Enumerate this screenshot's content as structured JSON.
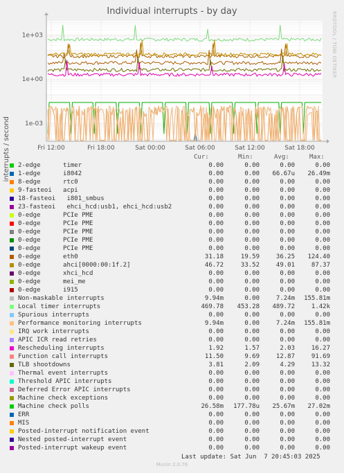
{
  "title": "Individual interrupts - by day",
  "side_label": "RRDTOOL / TOBI OETIKER",
  "footer": "Munin 2.0.76",
  "last_update": "Last update: Sat Jun  7 20:45:03 2025",
  "columns": [
    "Cur:",
    "Min:",
    "Avg:",
    "Max:"
  ],
  "chart_data": {
    "type": "line",
    "title": "Individual interrupts - by day",
    "ylabel": "interrupts / second",
    "yscale": "log",
    "ylim": [
      6e-05,
      9
    ],
    "yticks": [
      {
        "value": 1000,
        "label": "1e+03"
      },
      {
        "value": 1,
        "label": "1e+00"
      },
      {
        "value": 0.001,
        "label": "1e-03"
      }
    ],
    "xticks": [
      "Fri 12:00",
      "Fri 18:00",
      "Sat 00:00",
      "Sat 06:00",
      "Sat 12:00",
      "Sat 18:00"
    ],
    "grid": true,
    "series": [
      {
        "name": "Local timer interrupts",
        "level": 489.72,
        "color": "#7FD97F"
      },
      {
        "name": "Function call interrupts",
        "level": 12.87,
        "color": "#A85A00"
      },
      {
        "name": "TLB shootdowns",
        "level": 4.29,
        "color": "#6F6F00"
      },
      {
        "name": "Rescheduling interrupts",
        "level": 2.03,
        "color": "#E000B0"
      },
      {
        "name": "eth0",
        "level": 36.25,
        "color": "#A86400"
      },
      {
        "name": "ahci[0000:00:1f.2]",
        "level": 49.01,
        "color": "#C89000"
      },
      {
        "name": "Machine check polls",
        "level": 0.02567,
        "color": "#00B000"
      },
      {
        "name": "1-edge i8042",
        "level": 6.67e-05,
        "color": "#0066B3"
      },
      {
        "name": "Non-maskable interrupts",
        "level": 0.00724,
        "color": "#F0C090"
      },
      {
        "name": "Performance monitoring interrupts",
        "level": 0.00724,
        "color": "#F0B070"
      }
    ]
  },
  "legend": [
    {
      "label": "2-edge      timer",
      "color": "#00CC00",
      "cur": "0.00",
      "min": "0.00",
      "avg": "0.00",
      "max": "0.00"
    },
    {
      "label": "1-edge      i8042",
      "color": "#0066B3",
      "cur": "0.00",
      "min": "0.00",
      "avg": "66.67u",
      "max": "26.49m"
    },
    {
      "label": "8-edge      rtc0",
      "color": "#FF8000",
      "cur": "0.00",
      "min": "0.00",
      "avg": "0.00",
      "max": "0.00"
    },
    {
      "label": "9-fasteoi   acpi",
      "color": "#FFCC00",
      "cur": "0.00",
      "min": "0.00",
      "avg": "0.00",
      "max": "0.00"
    },
    {
      "label": "18-fasteoi   i801_smbus",
      "color": "#330099",
      "cur": "0.00",
      "min": "0.00",
      "avg": "0.00",
      "max": "0.00"
    },
    {
      "label": "23-fasteoi   ehci_hcd:usb1, ehci_hcd:usb2",
      "color": "#990099",
      "cur": "0.00",
      "min": "0.00",
      "avg": "0.00",
      "max": "0.00"
    },
    {
      "label": "0-edge      PCIe PME",
      "color": "#CCFF00",
      "cur": "0.00",
      "min": "0.00",
      "avg": "0.00",
      "max": "0.00"
    },
    {
      "label": "0-edge      PCIe PME",
      "color": "#FF0000",
      "cur": "0.00",
      "min": "0.00",
      "avg": "0.00",
      "max": "0.00"
    },
    {
      "label": "0-edge      PCIe PME",
      "color": "#808080",
      "cur": "0.00",
      "min": "0.00",
      "avg": "0.00",
      "max": "0.00"
    },
    {
      "label": "0-edge      PCIe PME",
      "color": "#008F00",
      "cur": "0.00",
      "min": "0.00",
      "avg": "0.00",
      "max": "0.00"
    },
    {
      "label": "0-edge      PCIe PME",
      "color": "#00487D",
      "cur": "0.00",
      "min": "0.00",
      "avg": "0.00",
      "max": "0.00"
    },
    {
      "label": "0-edge      eth0",
      "color": "#B35A00",
      "cur": "31.18",
      "min": "19.59",
      "avg": "36.25",
      "max": "124.40"
    },
    {
      "label": "0-edge      ahci[0000:00:1f.2]",
      "color": "#B38F00",
      "cur": "46.72",
      "min": "33.52",
      "avg": "49.01",
      "max": "87.37"
    },
    {
      "label": "0-edge      xhci_hcd",
      "color": "#6B006B",
      "cur": "0.00",
      "min": "0.00",
      "avg": "0.00",
      "max": "0.00"
    },
    {
      "label": "0-edge      mei_me",
      "color": "#8FB300",
      "cur": "0.00",
      "min": "0.00",
      "avg": "0.00",
      "max": "0.00"
    },
    {
      "label": "0-edge      i915",
      "color": "#B30000",
      "cur": "0.00",
      "min": "0.00",
      "avg": "0.00",
      "max": "0.00"
    },
    {
      "label": "Non-maskable interrupts",
      "color": "#BEBEBE",
      "cur": "9.94m",
      "min": "0.00",
      "avg": "7.24m",
      "max": "155.81m"
    },
    {
      "label": "Local timer interrupts",
      "color": "#80FF80",
      "cur": "469.78",
      "min": "453.28",
      "avg": "489.72",
      "max": "1.42k"
    },
    {
      "label": "Spurious interrupts",
      "color": "#80C9FF",
      "cur": "0.00",
      "min": "0.00",
      "avg": "0.00",
      "max": "0.00"
    },
    {
      "label": "Performance monitoring interrupts",
      "color": "#FFC080",
      "cur": "9.94m",
      "min": "0.00",
      "avg": "7.24m",
      "max": "155.81m"
    },
    {
      "label": "IRQ work interrupts",
      "color": "#FFE680",
      "cur": "0.00",
      "min": "0.00",
      "avg": "0.00",
      "max": "0.00"
    },
    {
      "label": "APIC ICR read retries",
      "color": "#AA80FF",
      "cur": "0.00",
      "min": "0.00",
      "avg": "0.00",
      "max": "0.00"
    },
    {
      "label": "Rescheduling interrupts",
      "color": "#EE00CC",
      "cur": "1.92",
      "min": "1.57",
      "avg": "2.03",
      "max": "16.27"
    },
    {
      "label": "Function call interrupts",
      "color": "#FF8080",
      "cur": "11.50",
      "min": "9.69",
      "avg": "12.87",
      "max": "91.69"
    },
    {
      "label": "TLB shootdowns",
      "color": "#666600",
      "cur": "3.81",
      "min": "2.09",
      "avg": "4.29",
      "max": "13.32"
    },
    {
      "label": "Thermal event interrupts",
      "color": "#FFBFFF",
      "cur": "0.00",
      "min": "0.00",
      "avg": "0.00",
      "max": "0.00"
    },
    {
      "label": "Threshold APIC interrupts",
      "color": "#00FFCC",
      "cur": "0.00",
      "min": "0.00",
      "avg": "0.00",
      "max": "0.00"
    },
    {
      "label": "Deferred Error APIC interrupts",
      "color": "#CC6699",
      "cur": "0.00",
      "min": "0.00",
      "avg": "0.00",
      "max": "0.00"
    },
    {
      "label": "Machine check exceptions",
      "color": "#999900",
      "cur": "0.00",
      "min": "0.00",
      "avg": "0.00",
      "max": "0.00"
    },
    {
      "label": "Machine check polls",
      "color": "#00CC00",
      "cur": "26.58m",
      "min": "177.78u",
      "avg": "25.67m",
      "max": "27.02m"
    },
    {
      "label": "ERR",
      "color": "#0066B3",
      "cur": "0.00",
      "min": "0.00",
      "avg": "0.00",
      "max": "0.00"
    },
    {
      "label": "MIS",
      "color": "#FF8000",
      "cur": "0.00",
      "min": "0.00",
      "avg": "0.00",
      "max": "0.00"
    },
    {
      "label": "Posted-interrupt notification event",
      "color": "#FFCC00",
      "cur": "0.00",
      "min": "0.00",
      "avg": "0.00",
      "max": "0.00"
    },
    {
      "label": "Nested posted-interrupt event",
      "color": "#330099",
      "cur": "0.00",
      "min": "0.00",
      "avg": "0.00",
      "max": "0.00"
    },
    {
      "label": "Posted-interrupt wakeup event",
      "color": "#990099",
      "cur": "0.00",
      "min": "0.00",
      "avg": "0.00",
      "max": "0.00"
    }
  ]
}
